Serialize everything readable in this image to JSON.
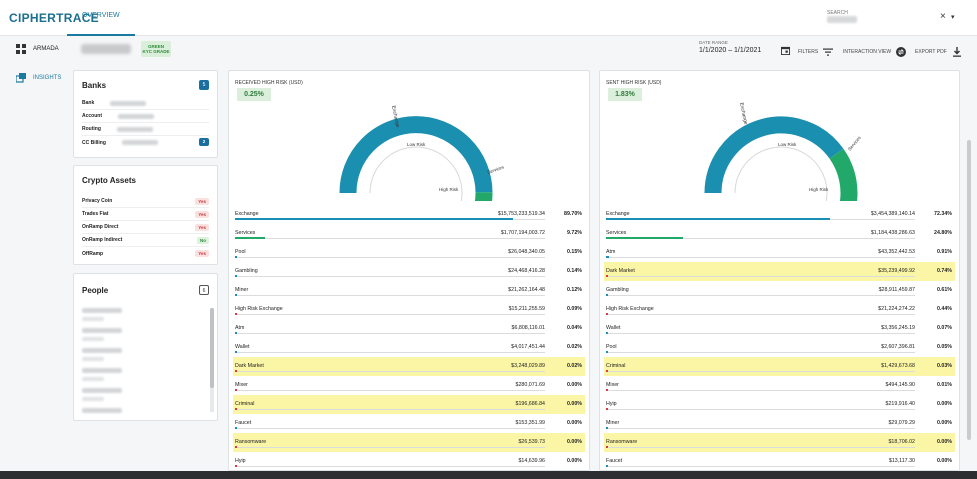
{
  "header": {
    "logo": "CIPHERTRACE",
    "tab": "OVERVIEW",
    "search_label": "SEARCH",
    "clear_icon": "×",
    "caret_icon": "▾"
  },
  "sidebar": {
    "items": [
      {
        "label": "ARMADA",
        "icon": "grid-icon"
      },
      {
        "label": "INSIGHTS",
        "icon": "cards-icon"
      }
    ]
  },
  "subheader": {
    "kyc_line1": "GREEN",
    "kyc_line2": "KYC GRADE",
    "date_label": "DATE RANGE",
    "date_value": "1/1/2020 – 1/1/2021",
    "filters": "FILTERS",
    "interaction_view": "INTERACTION VIEW",
    "export_pdf": "EXPORT PDF"
  },
  "banks": {
    "title": "Banks",
    "count": "5",
    "rows": [
      {
        "label": "Bank"
      },
      {
        "label": "Account"
      },
      {
        "label": "Routing"
      },
      {
        "label": "CC Billing",
        "badge": "2"
      }
    ]
  },
  "crypto_assets": {
    "title": "Crypto Assets",
    "rows": [
      {
        "label": "Privacy Coin",
        "value": "Yes"
      },
      {
        "label": "Trades Fiat",
        "value": "Yes"
      },
      {
        "label": "OnRamp Direct",
        "value": "Yes"
      },
      {
        "label": "OnRamp Indirect",
        "value": "No"
      },
      {
        "label": "OffRamp",
        "value": "Yes"
      }
    ]
  },
  "people": {
    "title": "People",
    "count": "6"
  },
  "received": {
    "title": "RECEIVED HIGH RISK (USD)",
    "pct": "0.25%",
    "gauge_labels": {
      "exchange": "Exchange",
      "low": "Low Risk",
      "high": "High Risk",
      "services": "Services"
    },
    "gauge_shares": [
      0.897,
      0.0972,
      0.0058
    ],
    "rows": [
      {
        "name": "Exchange",
        "amount": "$15,753,233,519.34",
        "pct": "89.70%",
        "frac": 0.897,
        "color": "#1a8fb5",
        "hl": false
      },
      {
        "name": "Services",
        "amount": "$1,707,194,003.72",
        "pct": "9.72%",
        "frac": 0.0972,
        "color": "#22a96a",
        "hl": false
      },
      {
        "name": "Pool",
        "amount": "$26,048,340.05",
        "pct": "0.15%",
        "frac": 0.0015,
        "color": "#1a8fb5",
        "hl": false
      },
      {
        "name": "Gambling",
        "amount": "$24,468,416.28",
        "pct": "0.14%",
        "frac": 0.0014,
        "color": "#1a8fb5",
        "hl": false
      },
      {
        "name": "Miner",
        "amount": "$21,262,164.48",
        "pct": "0.12%",
        "frac": 0.0012,
        "color": "#1a8fb5",
        "hl": false
      },
      {
        "name": "High Risk Exchange",
        "amount": "$15,211,255.59",
        "pct": "0.09%",
        "frac": 0.0009,
        "color": "#d93b3b",
        "hl": false
      },
      {
        "name": "Atm",
        "amount": "$6,808,116.01",
        "pct": "0.04%",
        "frac": 0.0004,
        "color": "#1a8fb5",
        "hl": false
      },
      {
        "name": "Wallet",
        "amount": "$4,017,451.44",
        "pct": "0.02%",
        "frac": 0.0002,
        "color": "#1a8fb5",
        "hl": false
      },
      {
        "name": "Dark Market",
        "amount": "$3,248,029.89",
        "pct": "0.02%",
        "frac": 0.0002,
        "color": "#d93b3b",
        "hl": true
      },
      {
        "name": "Mixer",
        "amount": "$280,071.69",
        "pct": "0.00%",
        "frac": 0,
        "color": "#d93b3b",
        "hl": false
      },
      {
        "name": "Criminal",
        "amount": "$196,686.84",
        "pct": "0.00%",
        "frac": 0,
        "color": "#d93b3b",
        "hl": true
      },
      {
        "name": "Faucet",
        "amount": "$153,351.99",
        "pct": "0.00%",
        "frac": 0,
        "color": "#1a8fb5",
        "hl": false
      },
      {
        "name": "Ransomware",
        "amount": "$26,539.73",
        "pct": "0.00%",
        "frac": 0,
        "color": "#d93b3b",
        "hl": true
      },
      {
        "name": "Hyip",
        "amount": "$14,639.96",
        "pct": "0.00%",
        "frac": 0,
        "color": "#d93b3b",
        "hl": false
      }
    ]
  },
  "sent": {
    "title": "SENT HIGH RISK (USD)",
    "pct": "1.83%",
    "gauge_labels": {
      "exchange": "Exchange",
      "low": "Low Risk",
      "high": "High Risk",
      "services": "Services"
    },
    "gauge_shares": [
      0.7234,
      0.248,
      0.0286
    ],
    "rows": [
      {
        "name": "Exchange",
        "amount": "$3,454,389,140.14",
        "pct": "72.34%",
        "frac": 0.7234,
        "color": "#1a8fb5",
        "hl": false
      },
      {
        "name": "Services",
        "amount": "$1,184,438,286.63",
        "pct": "24.80%",
        "frac": 0.248,
        "color": "#22a96a",
        "hl": false
      },
      {
        "name": "Atm",
        "amount": "$43,352,442.53",
        "pct": "0.91%",
        "frac": 0.0091,
        "color": "#1a8fb5",
        "hl": false
      },
      {
        "name": "Dark Market",
        "amount": "$35,239,499.92",
        "pct": "0.74%",
        "frac": 0.0074,
        "color": "#d93b3b",
        "hl": true
      },
      {
        "name": "Gambling",
        "amount": "$28,911,459.87",
        "pct": "0.61%",
        "frac": 0.0061,
        "color": "#1a8fb5",
        "hl": false
      },
      {
        "name": "High Risk Exchange",
        "amount": "$21,224,274.22",
        "pct": "0.44%",
        "frac": 0.0044,
        "color": "#d93b3b",
        "hl": false
      },
      {
        "name": "Wallet",
        "amount": "$3,356,245.19",
        "pct": "0.07%",
        "frac": 0.0007,
        "color": "#1a8fb5",
        "hl": false
      },
      {
        "name": "Pool",
        "amount": "$2,607,396.81",
        "pct": "0.05%",
        "frac": 0.0005,
        "color": "#1a8fb5",
        "hl": false
      },
      {
        "name": "Criminal",
        "amount": "$1,429,673.68",
        "pct": "0.03%",
        "frac": 0.0003,
        "color": "#d93b3b",
        "hl": true
      },
      {
        "name": "Mixer",
        "amount": "$494,145.90",
        "pct": "0.01%",
        "frac": 0.0001,
        "color": "#d93b3b",
        "hl": false
      },
      {
        "name": "Hyip",
        "amount": "$219,916.40",
        "pct": "0.00%",
        "frac": 0,
        "color": "#d93b3b",
        "hl": false
      },
      {
        "name": "Miner",
        "amount": "$29,079.29",
        "pct": "0.00%",
        "frac": 0,
        "color": "#1a8fb5",
        "hl": false
      },
      {
        "name": "Ransomware",
        "amount": "$18,706.02",
        "pct": "0.00%",
        "frac": 0,
        "color": "#d93b3b",
        "hl": true
      },
      {
        "name": "Faucet",
        "amount": "$13,117.30",
        "pct": "0.00%",
        "frac": 0,
        "color": "#1a8fb5",
        "hl": false
      }
    ]
  }
}
